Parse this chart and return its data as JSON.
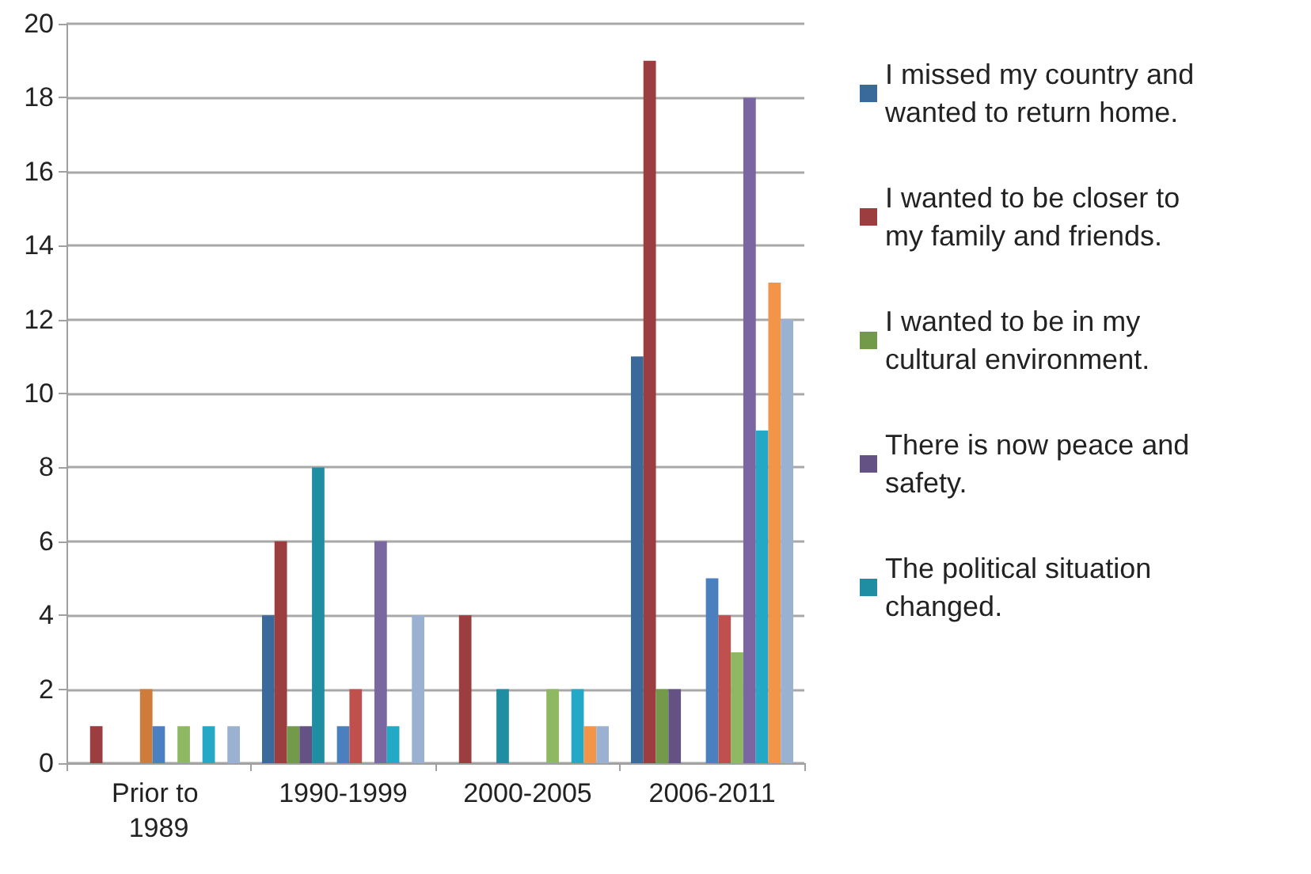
{
  "chart_data": {
    "type": "bar",
    "categories": [
      "Prior to 1989",
      "1990-1999",
      "2000-2005",
      "2006-2011"
    ],
    "series": [
      {
        "name": "I missed my country and wanted to return home.",
        "color": "#3a6a9c",
        "values": [
          0,
          4,
          0,
          11
        ]
      },
      {
        "name": "I wanted to be closer to my family and friends.",
        "color": "#9c3d3f",
        "values": [
          1,
          6,
          4,
          19
        ]
      },
      {
        "name": "I wanted to be in my cultural environment.",
        "color": "#73994a",
        "values": [
          0,
          1,
          0,
          2
        ]
      },
      {
        "name": "There is now peace and safety.",
        "color": "#635283",
        "values": [
          0,
          1,
          0,
          2
        ]
      },
      {
        "name": "The political situation changed.",
        "color": "#1f8ea3",
        "values": [
          0,
          8,
          2,
          0
        ]
      },
      {
        "color": "#cf7c3a",
        "values": [
          2,
          0,
          0,
          0
        ]
      },
      {
        "color": "#4a7fc0",
        "values": [
          1,
          1,
          0,
          5
        ]
      },
      {
        "color": "#c0504d",
        "values": [
          0,
          2,
          0,
          4
        ]
      },
      {
        "color": "#8fb862",
        "values": [
          1,
          0,
          2,
          3
        ]
      },
      {
        "color": "#7a66a0",
        "values": [
          0,
          6,
          0,
          18
        ]
      },
      {
        "color": "#23a8c6",
        "values": [
          1,
          1,
          2,
          9
        ]
      },
      {
        "color": "#f29548",
        "values": [
          0,
          0,
          1,
          13
        ]
      },
      {
        "color": "#9bb1d1",
        "values": [
          1,
          4,
          1,
          12
        ]
      }
    ],
    "ylim": [
      0,
      20
    ],
    "yticks": [
      0,
      2,
      4,
      6,
      8,
      10,
      12,
      14,
      16,
      18,
      20
    ],
    "grid": "y",
    "legend": "right"
  }
}
